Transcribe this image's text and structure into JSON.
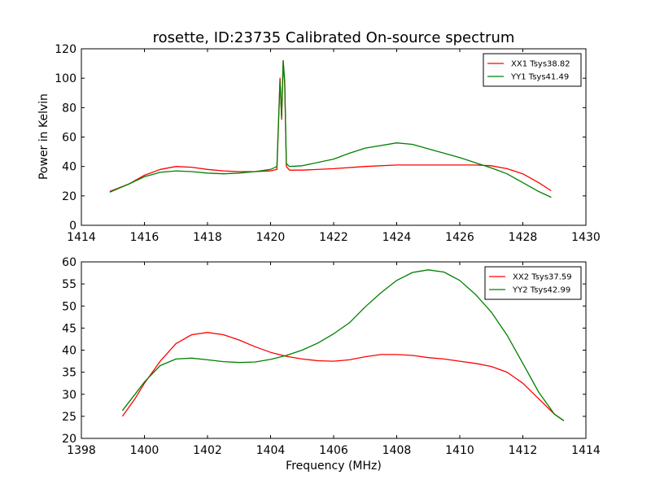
{
  "figure": {
    "title": "rosette, ID:23735 Calibrated On-source spectrum",
    "shared_ylabel": "Power in Kelvin",
    "shared_xlabel": "Frequency (MHz)"
  },
  "colors": {
    "red": "#ff0000",
    "green": "#008000"
  },
  "chart_data": [
    {
      "type": "line",
      "title": "rosette, ID:23735 Calibrated On-source spectrum",
      "xlabel": "",
      "ylabel": "Power in Kelvin",
      "xlim": [
        1414,
        1430
      ],
      "ylim": [
        0,
        120
      ],
      "xticks": [
        1414,
        1416,
        1418,
        1420,
        1422,
        1424,
        1426,
        1428,
        1430
      ],
      "yticks": [
        0,
        20,
        40,
        60,
        80,
        100,
        120
      ],
      "grid": false,
      "legend": "top-right",
      "series": [
        {
          "name": "XX1 Tsys38.82",
          "color": "#ff0000",
          "x": [
            1414.9,
            1415.5,
            1416.0,
            1416.5,
            1417.0,
            1417.5,
            1418.0,
            1418.5,
            1419.0,
            1419.5,
            1420.0,
            1420.2,
            1420.3,
            1420.35,
            1420.4,
            1420.45,
            1420.5,
            1420.6,
            1421.0,
            1422.0,
            1423.0,
            1424.0,
            1425.0,
            1426.0,
            1426.5,
            1427.0,
            1427.5,
            1428.0,
            1428.5,
            1428.9
          ],
          "y": [
            23,
            28,
            34,
            38,
            40,
            39.5,
            38,
            37,
            36.5,
            36.5,
            37,
            38,
            100,
            72,
            112,
            95,
            40,
            37.5,
            37.5,
            38.5,
            40,
            41,
            41,
            41,
            41,
            40.5,
            38.5,
            35,
            29,
            23.5
          ]
        },
        {
          "name": "YY1 Tsys41.49",
          "color": "#008000",
          "x": [
            1414.9,
            1415.5,
            1416.0,
            1416.5,
            1417.0,
            1417.5,
            1418.0,
            1418.5,
            1419.0,
            1419.5,
            1420.0,
            1420.2,
            1420.3,
            1420.35,
            1420.4,
            1420.45,
            1420.5,
            1420.6,
            1421.0,
            1422.0,
            1422.5,
            1423.0,
            1424.0,
            1424.5,
            1425.0,
            1426.0,
            1427.0,
            1427.5,
            1428.0,
            1428.5,
            1428.9
          ],
          "y": [
            22.5,
            28,
            33,
            36,
            37,
            36.5,
            35.5,
            35,
            35.5,
            36.5,
            38,
            40,
            98,
            74,
            112,
            98,
            42,
            40,
            40.5,
            45,
            49,
            52.5,
            56,
            55,
            52,
            46,
            39,
            35,
            29,
            23,
            19
          ]
        }
      ]
    },
    {
      "type": "line",
      "title": "",
      "xlabel": "Frequency (MHz)",
      "ylabel": "",
      "xlim": [
        1398,
        1414
      ],
      "ylim": [
        20,
        60
      ],
      "xticks": [
        1398,
        1400,
        1402,
        1404,
        1406,
        1408,
        1410,
        1412,
        1414
      ],
      "yticks": [
        20,
        25,
        30,
        35,
        40,
        45,
        50,
        55,
        60
      ],
      "grid": false,
      "legend": "top-right",
      "series": [
        {
          "name": "XX2 Tsys37.59",
          "color": "#ff0000",
          "x": [
            1399.3,
            1399.7,
            1400.0,
            1400.5,
            1401.0,
            1401.5,
            1402.0,
            1402.5,
            1403.0,
            1403.5,
            1404.0,
            1404.5,
            1405.0,
            1405.5,
            1406.0,
            1406.5,
            1407.0,
            1407.5,
            1408.0,
            1408.5,
            1409.0,
            1409.5,
            1410.0,
            1410.5,
            1411.0,
            1411.5,
            1412.0,
            1412.5,
            1413.0,
            1413.3
          ],
          "y": [
            25,
            29,
            32.5,
            37.5,
            41.5,
            43.5,
            44,
            43.5,
            42.3,
            40.8,
            39.5,
            38.6,
            38,
            37.6,
            37.5,
            37.8,
            38.5,
            39,
            39,
            38.8,
            38.3,
            38,
            37.5,
            37,
            36.3,
            35,
            32.5,
            29,
            25.5,
            24
          ]
        },
        {
          "name": "YY2 Tsys42.99",
          "color": "#008000",
          "x": [
            1399.3,
            1399.7,
            1400.0,
            1400.5,
            1401.0,
            1401.5,
            1402.0,
            1402.5,
            1403.0,
            1403.5,
            1404.0,
            1404.5,
            1405.0,
            1405.5,
            1406.0,
            1406.5,
            1407.0,
            1407.5,
            1408.0,
            1408.5,
            1409.0,
            1409.5,
            1410.0,
            1410.5,
            1411.0,
            1411.5,
            1412.0,
            1412.5,
            1413.0,
            1413.3
          ],
          "y": [
            26.3,
            30,
            32.8,
            36.5,
            38,
            38.2,
            37.8,
            37.4,
            37.2,
            37.3,
            37.9,
            38.8,
            40,
            41.6,
            43.7,
            46.2,
            49.8,
            53,
            55.8,
            57.6,
            58.2,
            57.7,
            55.8,
            52.6,
            48.6,
            43.4,
            37,
            30.5,
            25.5,
            24
          ]
        }
      ]
    }
  ]
}
